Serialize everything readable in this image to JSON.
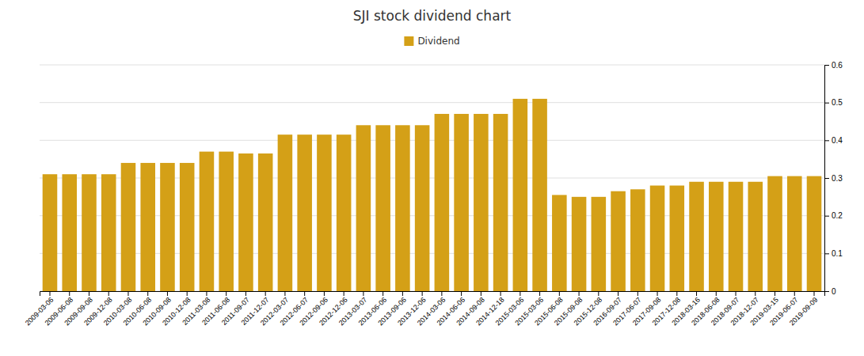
{
  "chart_data": {
    "type": "bar",
    "title": "SJI stock dividend chart",
    "categories": [
      "2009-03-06",
      "2009-06-08",
      "2009-09-08",
      "2009-12-08",
      "2010-03-08",
      "2010-06-08",
      "2010-09-08",
      "2010-12-08",
      "2011-03-08",
      "2011-06-08",
      "2011-09-07",
      "2011-12-07",
      "2012-03-07",
      "2012-06-07",
      "2012-09-06",
      "2012-12-06",
      "2013-03-07",
      "2013-06-06",
      "2013-09-06",
      "2013-12-06",
      "2014-03-06",
      "2014-06-06",
      "2014-09-08",
      "2014-12-18",
      "2015-03-06",
      "2015-03-06",
      "2015-06-08",
      "2015-09-08",
      "2015-12-08",
      "2016-09-07",
      "2017-06-07",
      "2017-09-08",
      "2017-12-08",
      "2018-03-16",
      "2018-06-08",
      "2018-09-07",
      "2018-12-07",
      "2019-03-15",
      "2019-06-07",
      "2019-09-09"
    ],
    "series": [
      {
        "name": "Dividend",
        "color": "#D4A017",
        "values": [
          0.31,
          0.31,
          0.31,
          0.31,
          0.34,
          0.34,
          0.34,
          0.34,
          0.37,
          0.37,
          0.365,
          0.365,
          0.415,
          0.415,
          0.415,
          0.415,
          0.44,
          0.44,
          0.44,
          0.44,
          0.47,
          0.47,
          0.47,
          0.47,
          0.51,
          0.51,
          0.255,
          0.25,
          0.25,
          0.265,
          0.27,
          0.28,
          0.28,
          0.29,
          0.29,
          0.29,
          0.29,
          0.305,
          0.305,
          0.305
        ]
      }
    ],
    "ylim": [
      0,
      0.6
    ],
    "yticks": [
      0,
      0.1,
      0.2,
      0.3,
      0.4,
      0.5,
      0.6
    ],
    "grid": true,
    "legend": "top"
  }
}
